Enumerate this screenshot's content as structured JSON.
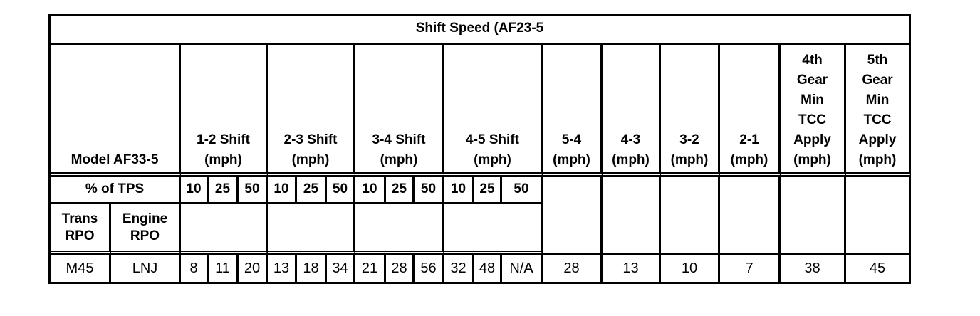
{
  "title": "Shift Speed (AF23-5",
  "header": {
    "model": "Model AF33-5",
    "groups": [
      "1-2 Shift\n(mph)",
      "2-3 Shift\n(mph)",
      "3-4 Shift\n(mph)",
      "4-5 Shift\n(mph)"
    ],
    "downshifts": [
      "5-4\n(mph)",
      "4-3\n(mph)",
      "3-2\n(mph)",
      "2-1\n(mph)"
    ],
    "tcc": [
      "4th\nGear\nMin\nTCC\nApply\n(mph)",
      "5th\nGear\nMin\nTCC\nApply\n(mph)"
    ],
    "tps_label": "% of TPS",
    "tps": [
      "10",
      "25",
      "50",
      "10",
      "25",
      "50",
      "10",
      "25",
      "50",
      "10",
      "25",
      "50"
    ],
    "trans_rpo": "Trans\nRPO",
    "engine_rpo": "Engine\nRPO"
  },
  "row": {
    "trans": "M45",
    "engine": "LNJ",
    "shift_values": [
      "8",
      "11",
      "20",
      "13",
      "18",
      "34",
      "21",
      "28",
      "56",
      "32",
      "48",
      "N/A"
    ],
    "downshift_values": [
      "28",
      "13",
      "10",
      "7"
    ],
    "tcc_values": [
      "38",
      "45"
    ]
  }
}
